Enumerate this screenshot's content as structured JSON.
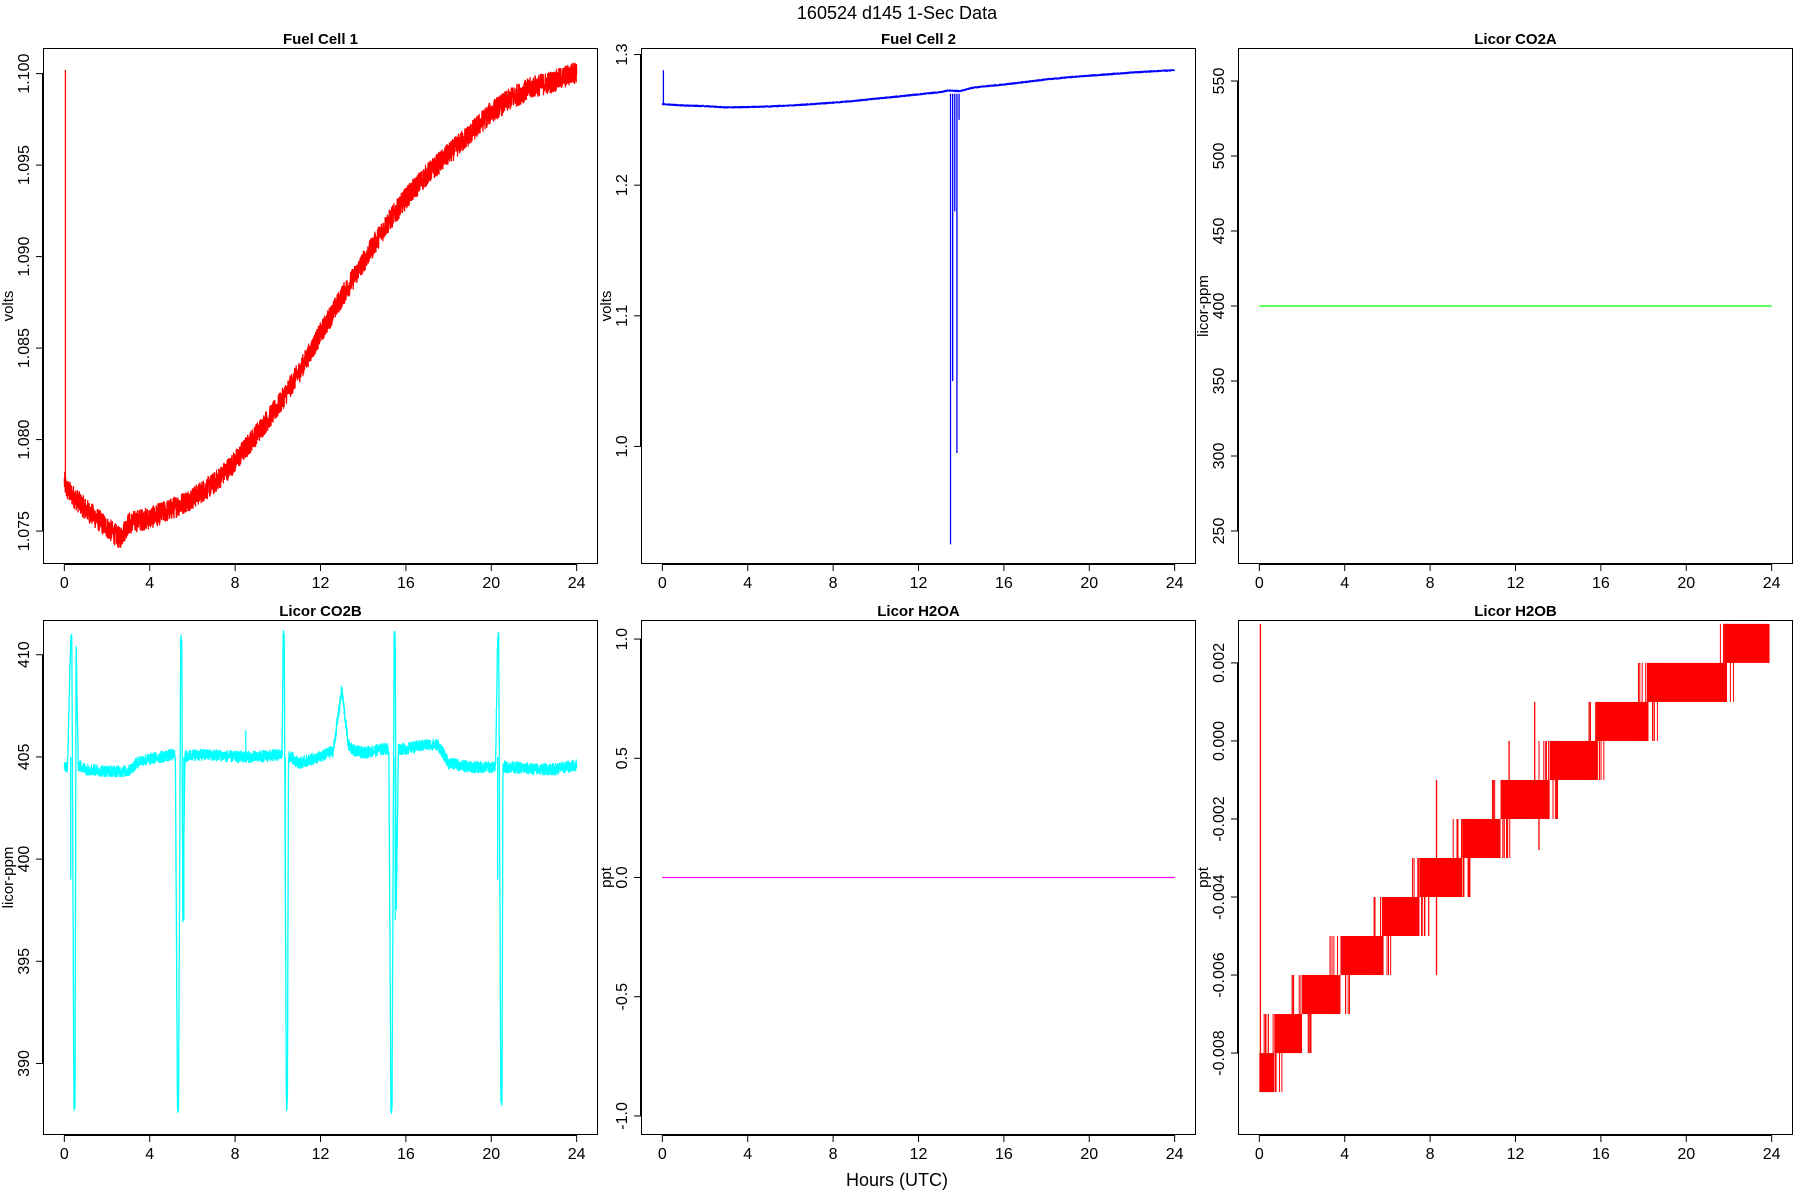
{
  "figure": {
    "title": "160524   d145   1-Sec Data",
    "xlabel": "Hours (UTC)"
  },
  "chart_data": [
    {
      "type": "line",
      "title": "Fuel Cell 1",
      "ylabel": "volts",
      "color": "#ff0000",
      "xlim": [
        -1,
        25
      ],
      "ylim": [
        1.0732,
        1.1014
      ],
      "xticks": [
        0,
        4,
        8,
        12,
        16,
        20,
        24
      ],
      "yticks": [
        1.075,
        1.08,
        1.085,
        1.09,
        1.095,
        1.1
      ],
      "ytick_labels": [
        "1.075",
        "1.080",
        "1.085",
        "1.090",
        "1.095",
        "1.100"
      ],
      "noise": 0.0006,
      "spikes": [
        [
          0.05,
          1.1002,
          1.0772
        ]
      ],
      "x": [
        0,
        0.1,
        0.5,
        1,
        1.5,
        2,
        2.6,
        3,
        3.5,
        4,
        5,
        6,
        7,
        8,
        9,
        10,
        11,
        12,
        13,
        14,
        15,
        16,
        17,
        18,
        19,
        20,
        21,
        22,
        23,
        24
      ],
      "values": [
        1.0777,
        1.0773,
        1.0768,
        1.0762,
        1.0757,
        1.0752,
        1.0746,
        1.0754,
        1.0756,
        1.0757,
        1.0762,
        1.0768,
        1.0776,
        1.0788,
        1.0803,
        1.0818,
        1.0837,
        1.0858,
        1.0878,
        1.0897,
        1.0916,
        1.0932,
        1.0945,
        1.0956,
        1.0967,
        1.0979,
        1.0987,
        1.0993,
        1.0996,
        1.1001
      ]
    },
    {
      "type": "line",
      "title": "Fuel Cell 2",
      "ylabel": "volts",
      "color": "#0000ff",
      "xlim": [
        -1,
        25
      ],
      "ylim": [
        0.91,
        1.305
      ],
      "xticks": [
        0,
        4,
        8,
        12,
        16,
        20,
        24
      ],
      "yticks": [
        1.0,
        1.1,
        1.2,
        1.3
      ],
      "ytick_labels": [
        "1.0",
        "1.1",
        "1.2",
        "1.3"
      ],
      "noise": 0.0005,
      "spikes": [
        [
          0.05,
          1.288,
          1.262
        ],
        [
          13.5,
          0.925,
          1.27
        ],
        [
          13.6,
          1.05,
          1.27
        ],
        [
          13.7,
          1.18,
          1.27
        ],
        [
          13.8,
          0.995,
          1.27
        ],
        [
          13.9,
          1.25,
          1.27
        ]
      ],
      "x": [
        0,
        1,
        2,
        3,
        4,
        5,
        6,
        7,
        8,
        9,
        10,
        11,
        12,
        13,
        13.4,
        13.95,
        14.5,
        15,
        16,
        17,
        18,
        19,
        20,
        21,
        22,
        23,
        24
      ],
      "values": [
        1.262,
        1.261,
        1.2605,
        1.2595,
        1.2598,
        1.2603,
        1.261,
        1.262,
        1.2632,
        1.2645,
        1.2662,
        1.2678,
        1.2695,
        1.2712,
        1.2725,
        1.272,
        1.2745,
        1.2755,
        1.277,
        1.279,
        1.281,
        1.2825,
        1.2838,
        1.285,
        1.2862,
        1.2872,
        1.288
      ]
    },
    {
      "type": "line",
      "title": "Licor CO2A",
      "ylabel": "licor-ppm",
      "color": "#00ff00",
      "xlim": [
        -1,
        25
      ],
      "ylim": [
        228,
        572
      ],
      "xticks": [
        0,
        4,
        8,
        12,
        16,
        20,
        24
      ],
      "yticks": [
        250,
        300,
        350,
        400,
        450,
        500,
        550
      ],
      "ytick_labels": [
        "250",
        "300",
        "350",
        "400",
        "450",
        "500",
        "550"
      ],
      "noise": 0,
      "spikes": [],
      "x": [
        0,
        24
      ],
      "values": [
        400,
        400
      ]
    },
    {
      "type": "line",
      "title": "Licor CO2B",
      "ylabel": "licor-ppm",
      "color": "#00ffff",
      "xlim": [
        -1,
        25
      ],
      "ylim": [
        386.5,
        411.7
      ],
      "xticks": [
        0,
        4,
        8,
        12,
        16,
        20,
        24
      ],
      "yticks": [
        390,
        395,
        400,
        405,
        410
      ],
      "ytick_labels": [
        "390",
        "395",
        "400",
        "405",
        "410"
      ],
      "noise": 0.28,
      "spikes": [
        [
          0.3,
          399,
          405
        ],
        [
          5.6,
          397,
          405
        ],
        [
          10.35,
          399,
          405
        ],
        [
          15.5,
          397,
          405
        ],
        [
          20.3,
          399,
          405
        ],
        [
          8.5,
          406.3,
          405
        ]
      ],
      "x": [
        0,
        0.15,
        0.3,
        0.35,
        0.45,
        0.5,
        0.55,
        0.65,
        1,
        2,
        3,
        3.5,
        4,
        5,
        5.2,
        5.3,
        5.35,
        5.45,
        5.5,
        5.55,
        5.65,
        6,
        7,
        8,
        9,
        10,
        10.2,
        10.25,
        10.3,
        10.4,
        10.45,
        10.5,
        10.6,
        11,
        12,
        12.6,
        13,
        13.3,
        13.6,
        14,
        15,
        15.2,
        15.3,
        15.35,
        15.45,
        15.5,
        15.55,
        15.65,
        16,
        17,
        17.5,
        18,
        19,
        20,
        20.2,
        20.3,
        20.35,
        20.45,
        20.5,
        20.55,
        20.65,
        21,
        22,
        23,
        24
      ],
      "values": [
        404.5,
        404.5,
        410.8,
        410.8,
        388.0,
        387.9,
        410.6,
        404.6,
        404.4,
        404.3,
        404.3,
        404.8,
        404.9,
        405.1,
        405.1,
        387.9,
        387.8,
        410.8,
        410.8,
        397.2,
        405.0,
        405.1,
        405.1,
        405.0,
        405.0,
        405.1,
        405.1,
        410.9,
        410.9,
        388.0,
        387.9,
        405.0,
        405.0,
        404.7,
        405.0,
        405.3,
        408.3,
        405.6,
        405.3,
        405.2,
        405.4,
        405.4,
        387.9,
        387.8,
        410.9,
        410.9,
        397.3,
        405.4,
        405.4,
        405.6,
        405.6,
        404.7,
        404.5,
        404.5,
        404.5,
        410.9,
        410.9,
        388.0,
        388.0,
        404.6,
        404.5,
        404.5,
        404.4,
        404.4,
        404.6
      ]
    },
    {
      "type": "line",
      "title": "Licor H2OA",
      "ylabel": "ppt",
      "color": "#ff00ff",
      "xlim": [
        -1,
        25
      ],
      "ylim": [
        -1.08,
        1.08
      ],
      "xticks": [
        0,
        4,
        8,
        12,
        16,
        20,
        24
      ],
      "yticks": [
        -1.0,
        -0.5,
        0.0,
        0.5,
        1.0
      ],
      "ytick_labels": [
        "-1.0",
        "-0.5",
        "0.0",
        "0.5",
        "1.0"
      ],
      "noise": 0,
      "spikes": [],
      "x": [
        0,
        24
      ],
      "values": [
        0,
        0
      ]
    },
    {
      "type": "line",
      "title": "Licor H2OB",
      "ylabel": "ppt",
      "color": "#ff0000",
      "xlim": [
        -1,
        25
      ],
      "ylim": [
        -0.0101,
        0.0031
      ],
      "xticks": [
        0,
        4,
        8,
        12,
        16,
        20,
        24
      ],
      "yticks": [
        -0.008,
        -0.006,
        -0.004,
        -0.002,
        0.0,
        0.002
      ],
      "ytick_labels": [
        "-0.008",
        "-0.006",
        "-0.004",
        "-0.002",
        "0.000",
        "0.002"
      ],
      "steps": [
        [
          0,
          0.7,
          -0.009,
          -0.008
        ],
        [
          0.7,
          2.0,
          -0.008,
          -0.007
        ],
        [
          2.0,
          3.8,
          -0.007,
          -0.006
        ],
        [
          3.8,
          5.8,
          -0.006,
          -0.005
        ],
        [
          5.8,
          7.5,
          -0.005,
          -0.004
        ],
        [
          7.5,
          9.5,
          -0.004,
          -0.003
        ],
        [
          9.5,
          11.3,
          -0.003,
          -0.002
        ],
        [
          11.3,
          13.6,
          -0.002,
          -0.001
        ],
        [
          13.6,
          15.8,
          -0.001,
          0.0
        ],
        [
          15.8,
          18.2,
          0.0,
          0.001
        ],
        [
          18.2,
          21.8,
          0.001,
          0.002
        ],
        [
          21.8,
          23.9,
          0.002,
          0.003
        ]
      ],
      "spikes": [
        [
          0.05,
          0.003,
          -0.0085
        ],
        [
          8.3,
          -0.001,
          -0.003
        ],
        [
          8.3,
          -0.006,
          -0.004
        ],
        [
          12.9,
          0.001,
          -0.002
        ],
        [
          13.1,
          -0.0028,
          -0.002
        ],
        [
          11.7,
          0.0,
          -0.0015
        ]
      ]
    }
  ]
}
